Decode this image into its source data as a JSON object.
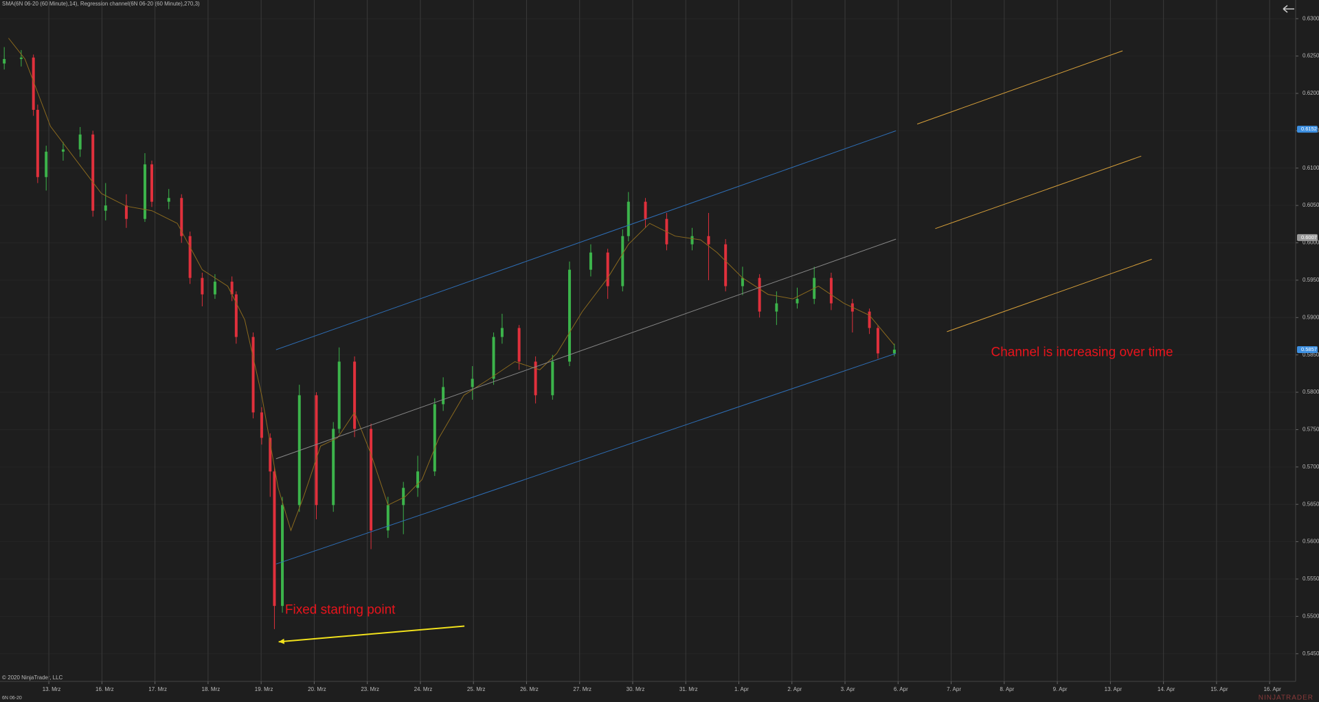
{
  "chart_data": {
    "type": "candlestick",
    "title": "SMA(6N 06-20 (60 Minute),14), Regression channel(6N 06-20 (60 Minute),270,3)",
    "instrument": "6N 06-20",
    "copyright": "© 2020 NinjaTrader, LLC",
    "logo": "NINJATRADER",
    "up_color": "#3cb44b",
    "down_color": "#e0303c",
    "grid": true,
    "xlim": [
      -0.92,
      23.49
    ],
    "ylim": [
      0.5413,
      0.6325
    ],
    "xticks": [
      {
        "value": 0,
        "label": "13. Mrz"
      },
      {
        "value": 1,
        "label": "16. Mrz"
      },
      {
        "value": 2,
        "label": "17. Mrz"
      },
      {
        "value": 3,
        "label": "18. Mrz"
      },
      {
        "value": 4,
        "label": "19. Mrz"
      },
      {
        "value": 5,
        "label": "20. Mrz"
      },
      {
        "value": 6,
        "label": "23. Mrz"
      },
      {
        "value": 7,
        "label": "24. Mrz"
      },
      {
        "value": 8,
        "label": "25. Mrz"
      },
      {
        "value": 9,
        "label": "26. Mrz"
      },
      {
        "value": 10,
        "label": "27. Mrz"
      },
      {
        "value": 11,
        "label": "30. Mrz"
      },
      {
        "value": 12,
        "label": "31. Mrz"
      },
      {
        "value": 13,
        "label": "1. Apr"
      },
      {
        "value": 14,
        "label": "2. Apr"
      },
      {
        "value": 15,
        "label": "3. Apr"
      },
      {
        "value": 16,
        "label": "6. Apr"
      },
      {
        "value": 17,
        "label": "7. Apr"
      },
      {
        "value": 18,
        "label": "8. Apr"
      },
      {
        "value": 19,
        "label": "9. Apr"
      },
      {
        "value": 20,
        "label": "13. Apr"
      },
      {
        "value": 21,
        "label": "14. Apr"
      },
      {
        "value": 22,
        "label": "15. Apr"
      },
      {
        "value": 23,
        "label": "16. Apr"
      }
    ],
    "yticks": [
      {
        "value": 0.63,
        "label": "0.6300"
      },
      {
        "value": 0.625,
        "label": "0.6250"
      },
      {
        "value": 0.62,
        "label": "0.6200"
      },
      {
        "value": 0.615,
        "label": "0.6150"
      },
      {
        "value": 0.61,
        "label": "0.6100"
      },
      {
        "value": 0.605,
        "label": "0.6050"
      },
      {
        "value": 0.6,
        "label": "0.6000"
      },
      {
        "value": 0.595,
        "label": "0.5950"
      },
      {
        "value": 0.59,
        "label": "0.5900"
      },
      {
        "value": 0.585,
        "label": "0.5850"
      },
      {
        "value": 0.58,
        "label": "0.5800"
      },
      {
        "value": 0.575,
        "label": "0.5750"
      },
      {
        "value": 0.57,
        "label": "0.5700"
      },
      {
        "value": 0.565,
        "label": "0.5650"
      },
      {
        "value": 0.56,
        "label": "0.5600"
      },
      {
        "value": 0.555,
        "label": "0.5550"
      },
      {
        "value": 0.55,
        "label": "0.5500"
      },
      {
        "value": 0.545,
        "label": "0.5450"
      }
    ],
    "x": [
      -0.84,
      -0.52,
      -0.29,
      -0.21,
      -0.05,
      0.27,
      0.59,
      0.83,
      1.07,
      1.46,
      1.81,
      1.94,
      2.26,
      2.5,
      2.66,
      2.89,
      3.13,
      3.45,
      3.53,
      3.85,
      4.01,
      4.17,
      4.25,
      4.4,
      4.72,
      5.04,
      5.36,
      5.47,
      5.76,
      6.07,
      6.39,
      6.68,
      6.95,
      7.27,
      7.43,
      7.98,
      8.38,
      8.54,
      8.86,
      9.17,
      9.49,
      9.81,
      10.21,
      10.53,
      10.81,
      10.92,
      11.24,
      11.64,
      12.12,
      12.43,
      12.75,
      13.07,
      13.39,
      13.71,
      14.1,
      14.42,
      14.74,
      15.14,
      15.46,
      15.62,
      15.93
    ],
    "open": [
      0.624,
      0.6246,
      0.6248,
      0.6178,
      0.6088,
      0.6122,
      0.6125,
      0.6145,
      0.6043,
      0.605,
      0.6032,
      0.6105,
      0.6055,
      0.606,
      0.6009,
      0.5953,
      0.5931,
      0.5948,
      0.5931,
      0.5874,
      0.5773,
      0.5739,
      0.5694,
      0.5514,
      0.5649,
      0.5796,
      0.5649,
      0.5751,
      0.5841,
      0.5751,
      0.5615,
      0.5649,
      0.5672,
      0.5694,
      0.5784,
      0.5807,
      0.5818,
      0.5874,
      0.5886,
      0.5841,
      0.5796,
      0.5841,
      0.5964,
      0.5987,
      0.5942,
      0.6009,
      0.6055,
      0.6032,
      0.5998,
      0.6009,
      0.5998,
      0.5942,
      0.5953,
      0.5908,
      0.5919,
      0.5925,
      0.5953,
      0.5919,
      0.5908,
      0.5886,
      0.5852
    ],
    "high": [
      0.6262,
      0.6258,
      0.6252,
      0.6185,
      0.613,
      0.6135,
      0.6155,
      0.615,
      0.608,
      0.6065,
      0.612,
      0.611,
      0.6072,
      0.6065,
      0.6015,
      0.596,
      0.5958,
      0.5955,
      0.5935,
      0.588,
      0.578,
      0.5745,
      0.57,
      0.566,
      0.581,
      0.58,
      0.576,
      0.586,
      0.5848,
      0.5758,
      0.566,
      0.568,
      0.5715,
      0.5792,
      0.582,
      0.5835,
      0.588,
      0.5905,
      0.589,
      0.5848,
      0.585,
      0.5975,
      0.5998,
      0.5992,
      0.6018,
      0.6068,
      0.606,
      0.604,
      0.602,
      0.604,
      0.6005,
      0.5968,
      0.5958,
      0.5935,
      0.594,
      0.5968,
      0.596,
      0.5925,
      0.5912,
      0.589,
      0.5865
    ],
    "low": [
      0.6232,
      0.6236,
      0.617,
      0.608,
      0.607,
      0.611,
      0.6115,
      0.6035,
      0.603,
      0.602,
      0.6028,
      0.6048,
      0.6045,
      0.6,
      0.5945,
      0.5915,
      0.5925,
      0.5922,
      0.5865,
      0.5765,
      0.573,
      0.566,
      0.5483,
      0.5505,
      0.564,
      0.563,
      0.564,
      0.5745,
      0.574,
      0.559,
      0.5605,
      0.561,
      0.566,
      0.5688,
      0.5775,
      0.579,
      0.581,
      0.5865,
      0.583,
      0.5785,
      0.579,
      0.5835,
      0.5955,
      0.5925,
      0.5935,
      0.6002,
      0.602,
      0.599,
      0.599,
      0.595,
      0.5935,
      0.593,
      0.59,
      0.589,
      0.5912,
      0.5918,
      0.591,
      0.588,
      0.5878,
      0.5845,
      0.5848
    ],
    "close": [
      0.6246,
      0.6248,
      0.6178,
      0.6088,
      0.6122,
      0.6125,
      0.6145,
      0.6043,
      0.605,
      0.6032,
      0.6105,
      0.6055,
      0.606,
      0.6009,
      0.5953,
      0.5931,
      0.5948,
      0.5931,
      0.5874,
      0.5773,
      0.5739,
      0.5694,
      0.5514,
      0.5649,
      0.5796,
      0.5649,
      0.5751,
      0.5841,
      0.5751,
      0.5615,
      0.5649,
      0.5672,
      0.5694,
      0.5784,
      0.5807,
      0.5818,
      0.5874,
      0.5886,
      0.5841,
      0.5796,
      0.5841,
      0.5964,
      0.5987,
      0.5942,
      0.6009,
      0.6055,
      0.6032,
      0.5998,
      0.6009,
      0.5998,
      0.5942,
      0.5953,
      0.5908,
      0.5919,
      0.5925,
      0.5953,
      0.5919,
      0.5908,
      0.5886,
      0.5852,
      0.5857
    ],
    "series": [
      {
        "name": "SMA",
        "color": "#8b6a1e",
        "x": [
          -0.76,
          -0.45,
          0.03,
          0.51,
          0.99,
          1.46,
          1.94,
          2.42,
          2.89,
          3.37,
          3.69,
          4.01,
          4.32,
          4.56,
          4.8,
          5.12,
          5.44,
          5.76,
          6.07,
          6.39,
          6.71,
          7.03,
          7.35,
          7.82,
          8.3,
          8.78,
          9.25,
          9.57,
          10.05,
          10.53,
          10.92,
          11.32,
          11.8,
          12.28,
          12.59,
          13.07,
          13.55,
          14.02,
          14.5,
          14.98,
          15.46,
          15.93
        ],
        "values": [
          0.6274,
          0.6246,
          0.6156,
          0.6111,
          0.6066,
          0.6049,
          0.6043,
          0.6026,
          0.5964,
          0.5942,
          0.5897,
          0.5796,
          0.5672,
          0.5615,
          0.566,
          0.5728,
          0.5739,
          0.5773,
          0.5717,
          0.5649,
          0.566,
          0.5683,
          0.5739,
          0.5796,
          0.5818,
          0.5841,
          0.583,
          0.5852,
          0.5908,
          0.5953,
          0.5998,
          0.6026,
          0.6009,
          0.6004,
          0.5987,
          0.5953,
          0.5931,
          0.5925,
          0.5942,
          0.5919,
          0.5903,
          0.5863
        ]
      }
    ],
    "lines": [
      {
        "color": "#2e6fb8",
        "x": [
          4.28,
          15.96
        ],
        "values": [
          0.5857,
          0.615
        ]
      },
      {
        "color": "#8a8a8a",
        "x": [
          4.28,
          15.96
        ],
        "values": [
          0.5711,
          0.6005
        ]
      },
      {
        "color": "#2e6fb8",
        "x": [
          4.28,
          15.96
        ],
        "values": [
          0.557,
          0.5852
        ]
      },
      {
        "color": "#d9a13a",
        "x": [
          16.36,
          20.23
        ],
        "values": [
          0.6159,
          0.6257
        ]
      },
      {
        "color": "#d9a13a",
        "x": [
          16.7,
          20.58
        ],
        "values": [
          0.6019,
          0.6116
        ]
      },
      {
        "color": "#d9a13a",
        "x": [
          16.92,
          20.78
        ],
        "values": [
          0.5881,
          0.5978
        ]
      }
    ],
    "arrow": {
      "color": "#f2e21c",
      "x": [
        7.83,
        4.33
      ],
      "values": [
        0.5487,
        0.5466
      ]
    },
    "annotations": [
      {
        "text": "Fixed starting point",
        "x": 4.45,
        "y": 0.5508,
        "color": "#e8141c"
      },
      {
        "text": "Channel is increasing over time",
        "x": 17.75,
        "y": 0.5853,
        "color": "#e8141c"
      }
    ],
    "price_markers": [
      {
        "value": 0.6152,
        "label": "0.6152",
        "color": "#3d8fe0"
      },
      {
        "value": 0.6007,
        "label": "0.6007",
        "color": "#9a9a9a"
      },
      {
        "value": 0.5857,
        "label": "0.5857",
        "color": "#3d8fe0"
      }
    ]
  }
}
